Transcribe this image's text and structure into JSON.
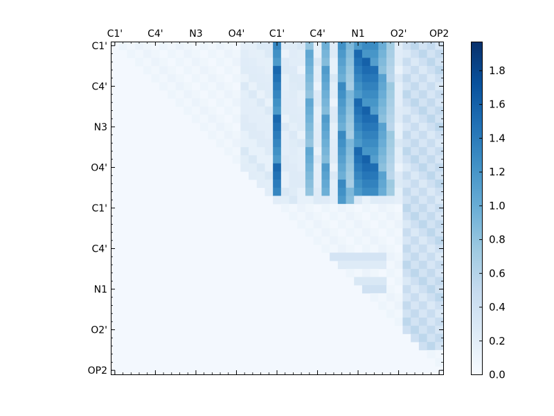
{
  "chart_data": {
    "type": "heatmap",
    "title": "",
    "xlabel": "",
    "ylabel": "",
    "n_cells": 41,
    "x_tick_labels": [
      "C1'",
      "C4'",
      "N3",
      "O4'",
      "C1'",
      "C4'",
      "N1",
      "O2'",
      "OP2"
    ],
    "x_tick_positions": [
      0,
      5,
      10,
      15,
      20,
      25,
      30,
      35,
      40
    ],
    "y_tick_labels": [
      "C1'",
      "C4'",
      "N3",
      "O4'",
      "C1'",
      "C4'",
      "N1",
      "O2'",
      "OP2"
    ],
    "y_tick_positions": [
      0,
      5,
      10,
      15,
      20,
      25,
      30,
      35,
      40
    ],
    "x_axis_position": "top",
    "colormap": "Blues",
    "colormap_stops": [
      "#f7fbff",
      "#deebf7",
      "#c6dbef",
      "#9ecae1",
      "#6baed6",
      "#4292c6",
      "#2171b5",
      "#08519c",
      "#08306b"
    ],
    "value_range": [
      0.0,
      1.97
    ],
    "colorbar": {
      "position": "right",
      "tick_values": [
        0.0,
        0.2,
        0.4,
        0.6,
        0.8,
        1.0,
        1.2,
        1.4,
        1.6,
        1.8
      ],
      "tick_labels": [
        "0.0",
        "0.2",
        "0.4",
        "0.6",
        "0.8",
        "1.0",
        "1.2",
        "1.4",
        "1.6",
        "1.8"
      ]
    },
    "pattern": "upper-triangular matrix of values; cells at or below the diagonal are near 0.0",
    "strong_columns": [
      {
        "col": 20,
        "rows": [
          0,
          18
        ],
        "value": 1.55
      },
      {
        "col": 22,
        "rows": [
          0,
          18
        ],
        "value": 0.25
      },
      {
        "col": 24,
        "rows": [
          0,
          18
        ],
        "value": 1.05
      },
      {
        "col": 26,
        "rows": [
          0,
          18
        ],
        "value": 1.15
      },
      {
        "col": 28,
        "rows": [
          0,
          19
        ],
        "value": 1.3
      },
      {
        "col": 29,
        "rows": [
          0,
          19
        ],
        "value": 0.9
      },
      {
        "col": 30,
        "rows": [
          0,
          18
        ],
        "value": 1.55
      },
      {
        "col": 31,
        "rows": [
          0,
          18
        ],
        "value": 1.6
      },
      {
        "col": 32,
        "rows": [
          0,
          18
        ],
        "value": 1.5
      },
      {
        "col": 33,
        "rows": [
          0,
          18
        ],
        "value": 1.1
      },
      {
        "col": 34,
        "rows": [
          0,
          18
        ],
        "value": 0.75
      }
    ],
    "strong_rows": [
      {
        "row": 26,
        "cols": [
          27,
          33
        ],
        "value": 0.35
      },
      {
        "row": 27,
        "cols": [
          27,
          33
        ],
        "value": 0.25
      },
      {
        "row": 29,
        "cols": [
          28,
          33
        ],
        "value": 0.3
      },
      {
        "row": 30,
        "cols": [
          29,
          33
        ],
        "value": 0.4
      }
    ],
    "right_block": {
      "cols": [
        36,
        40
      ],
      "rows": [
        0,
        37
      ],
      "value": 0.55
    }
  }
}
